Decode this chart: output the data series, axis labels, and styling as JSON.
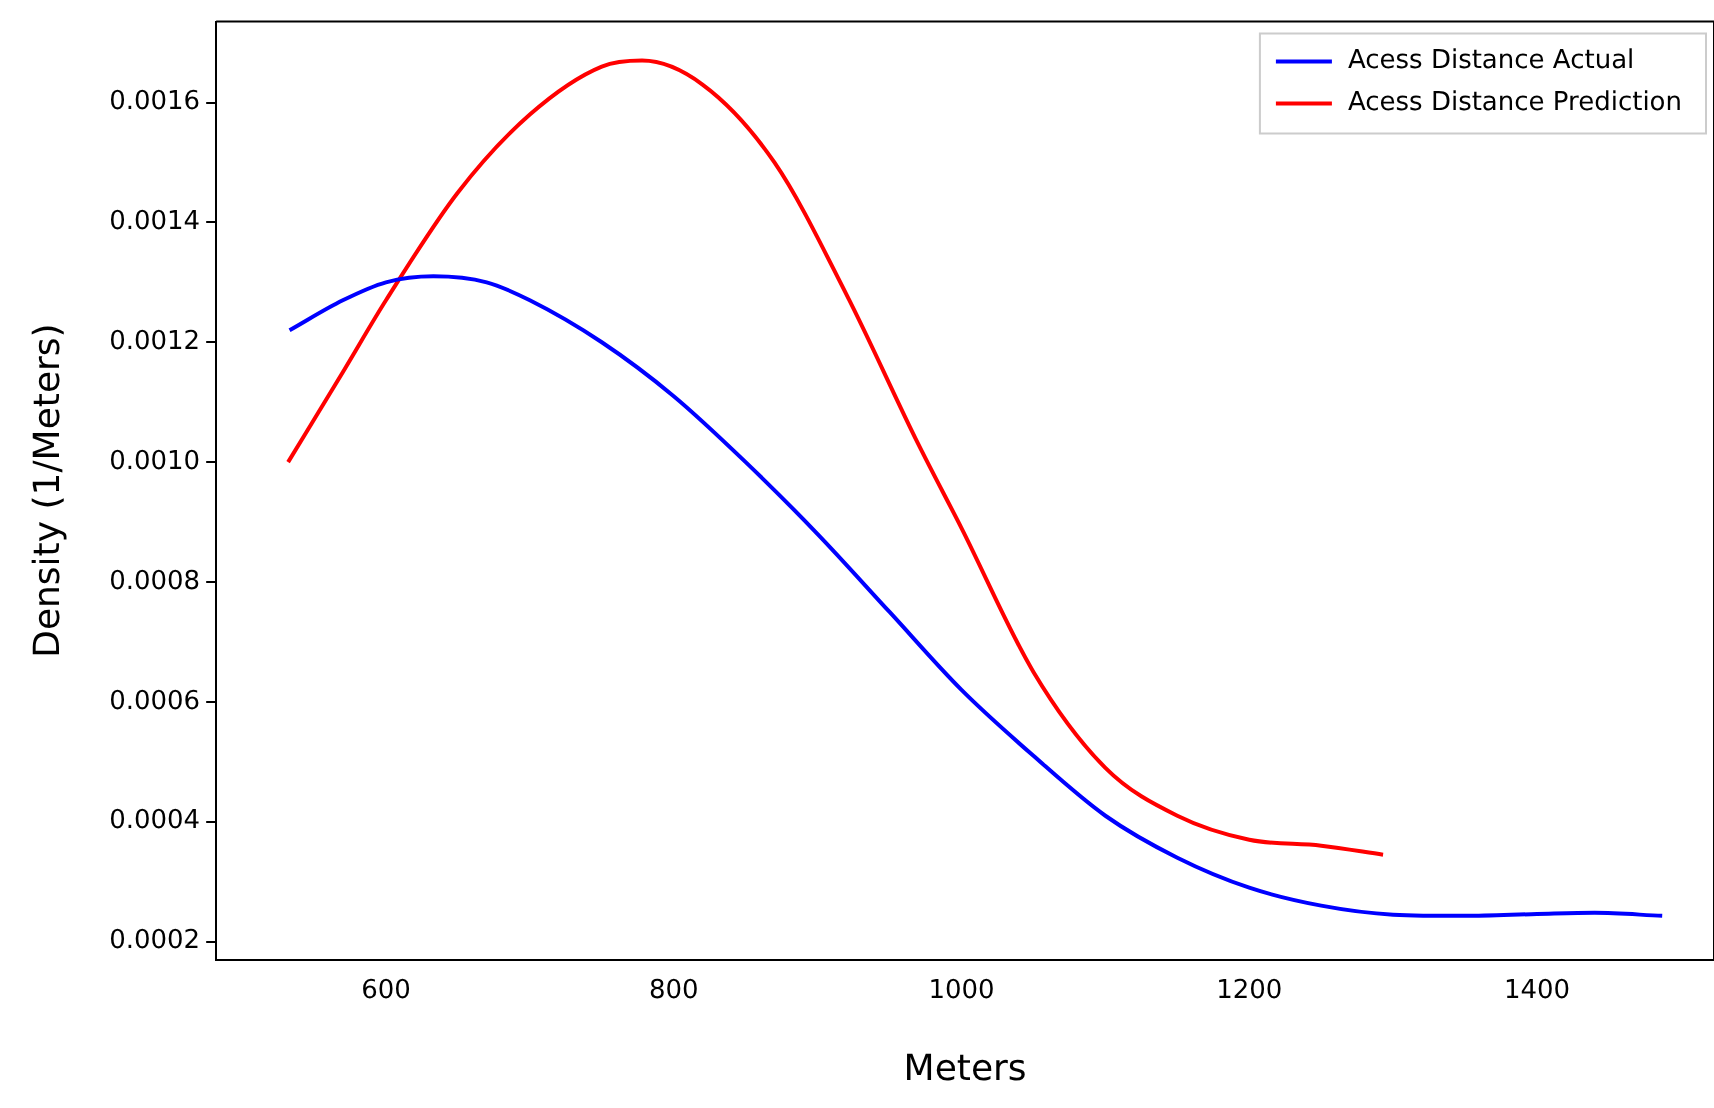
{
  "chart_data": {
    "type": "line",
    "xlabel": "Meters",
    "ylabel": "Density (1/Meters)",
    "xlim": [
      482,
      1523
    ],
    "xticks": [
      600,
      800,
      1000,
      1200,
      1400
    ],
    "ylim": [
      0.00017,
      0.001735
    ],
    "yticks": [
      0.0002,
      0.0004,
      0.0006,
      0.0008,
      {
        "value": 0.001,
        "label": "0.0010"
      },
      0.0012,
      0.0014,
      0.0016
    ],
    "legend": "top right",
    "grid": false,
    "marker": "none",
    "line_style": "solid",
    "series": [
      {
        "name": "Acess Distance Actual",
        "color": "#0000ff",
        "x": [
          533,
          570,
          600,
          633,
          670,
          700,
          750,
          800,
          850,
          900,
          950,
          1000,
          1050,
          1100,
          1150,
          1200,
          1250,
          1300,
          1350,
          1400,
          1440,
          1487
        ],
        "values": [
          0.00122,
          0.00127,
          0.0013,
          0.00131,
          0.0013,
          0.00127,
          0.0012,
          0.00111,
          0.001,
          0.00088,
          0.00075,
          0.00062,
          0.00051,
          0.00041,
          0.00034,
          0.00029,
          0.00026,
          0.000245,
          0.000243,
          0.000246,
          0.000248,
          0.000243
        ]
      },
      {
        "name": "Acess Distance Prediction",
        "color": "#ff0000",
        "x": [
          532,
          570,
          600,
          650,
          700,
          750,
          778,
          820,
          870,
          920,
          970,
          1000,
          1050,
          1100,
          1150,
          1200,
          1250,
          1293
        ],
        "values": [
          0.001,
          0.00115,
          0.00127,
          0.00145,
          0.00158,
          0.00166,
          0.00167,
          0.00163,
          0.0015,
          0.00128,
          0.00103,
          0.00089,
          0.00065,
          0.00049,
          0.00041,
          0.00037,
          0.00036,
          0.000345
        ]
      }
    ]
  }
}
